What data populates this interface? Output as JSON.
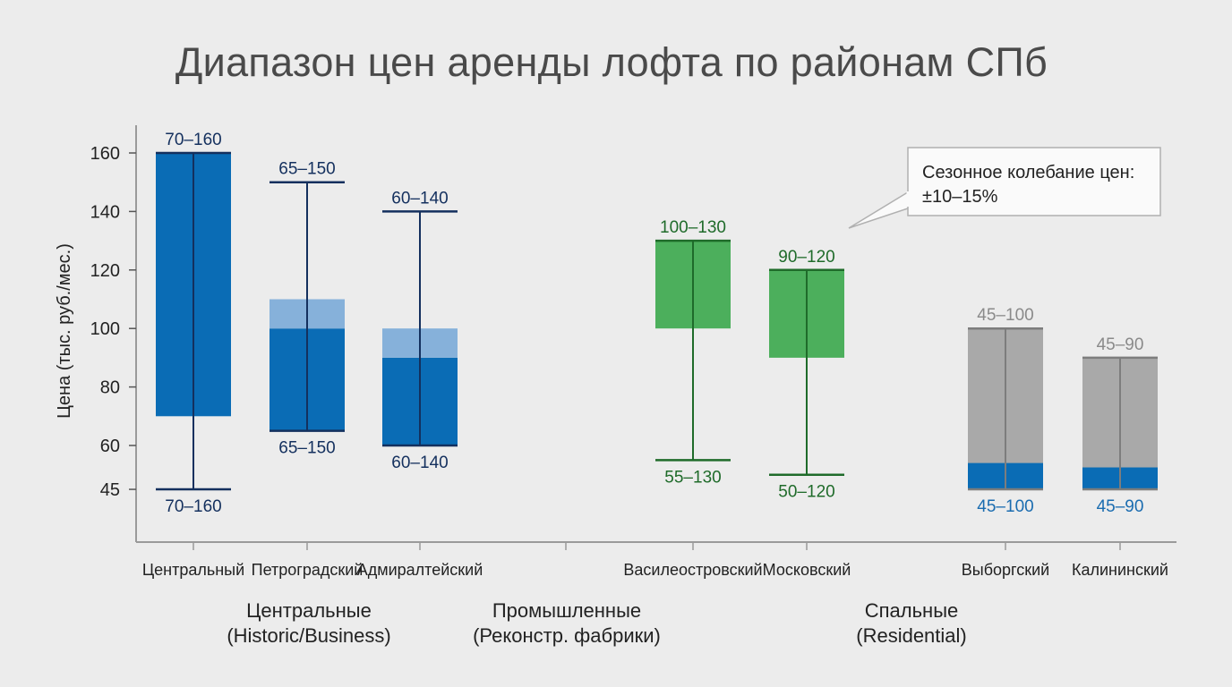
{
  "chart_data": {
    "type": "bar",
    "subtype": "floating-range-with-whiskers",
    "title": "Диапазон цен аренды лофта по районам СПб",
    "ylabel": "Цена (тыс. руб./мес.)",
    "xlabel": "",
    "ylim": [
      45,
      170
    ],
    "yticks": [
      45,
      60,
      80,
      100,
      120,
      140,
      160
    ],
    "grid": false,
    "colors": {
      "central": "#0a6cb5",
      "central_light": "#86b1da",
      "central_whisker": "#14305e",
      "central_label": "#14305e",
      "industrial": "#4caf5c",
      "industrial_whisker": "#1f6b2a",
      "industrial_label": "#1f6b2a",
      "residential": "#a9a9a9",
      "residential_whisker": "#7d7d7d",
      "residential_label_top": "#8a8a8a",
      "residential_base": "#0a6cb5",
      "residential_label_bottom": "#1a6cb0"
    },
    "groups": [
      {
        "name": "Центральные",
        "subname": "(Historic/Business)",
        "style": "central"
      },
      {
        "name": "Промышленные",
        "subname": "(Реконстр. фабрики)",
        "style": "industrial"
      },
      {
        "name": "Спальные",
        "subname": "(Residential)",
        "style": "residential"
      }
    ],
    "categories": [
      {
        "name": "Центральный",
        "group": 0,
        "whisker": [
          45,
          160
        ],
        "box": [
          70,
          160
        ],
        "light": null,
        "base": null,
        "label_top": "70–160",
        "label_bottom": "70–160"
      },
      {
        "name": "Петроградский",
        "group": 0,
        "whisker": [
          65,
          150
        ],
        "box": [
          65,
          100
        ],
        "light": [
          100,
          110
        ],
        "base": null,
        "label_top": "65–150",
        "label_bottom": "65–150"
      },
      {
        "name": "Адмиралтейский",
        "group": 0,
        "whisker": [
          60,
          140
        ],
        "box": [
          60,
          90
        ],
        "light": [
          90,
          100
        ],
        "base": null,
        "label_top": "60–140",
        "label_bottom": "60–140"
      },
      {
        "name": "Василеостровский",
        "group": 1,
        "whisker": [
          55,
          130
        ],
        "box": [
          100,
          130
        ],
        "light": null,
        "base": null,
        "label_top": "100–130",
        "label_bottom": "55–130"
      },
      {
        "name": "Московский",
        "group": 1,
        "whisker": [
          50,
          120
        ],
        "box": [
          90,
          120
        ],
        "light": null,
        "base": null,
        "label_top": "90–120",
        "label_bottom": "50–120"
      },
      {
        "name": "Выборгский",
        "group": 2,
        "whisker": [
          45,
          100
        ],
        "box": [
          45,
          100
        ],
        "light": null,
        "base": [
          45,
          54
        ],
        "label_top": "45–100",
        "label_bottom": "45–100"
      },
      {
        "name": "Калининский",
        "group": 2,
        "whisker": [
          45,
          90
        ],
        "box": [
          45,
          90
        ],
        "light": null,
        "base": [
          45,
          52.5
        ],
        "label_top": "45–90",
        "label_bottom": "45–90"
      }
    ],
    "annotation": {
      "line1": "Сезонное колебание цен:",
      "line2": "±10–15%"
    }
  }
}
